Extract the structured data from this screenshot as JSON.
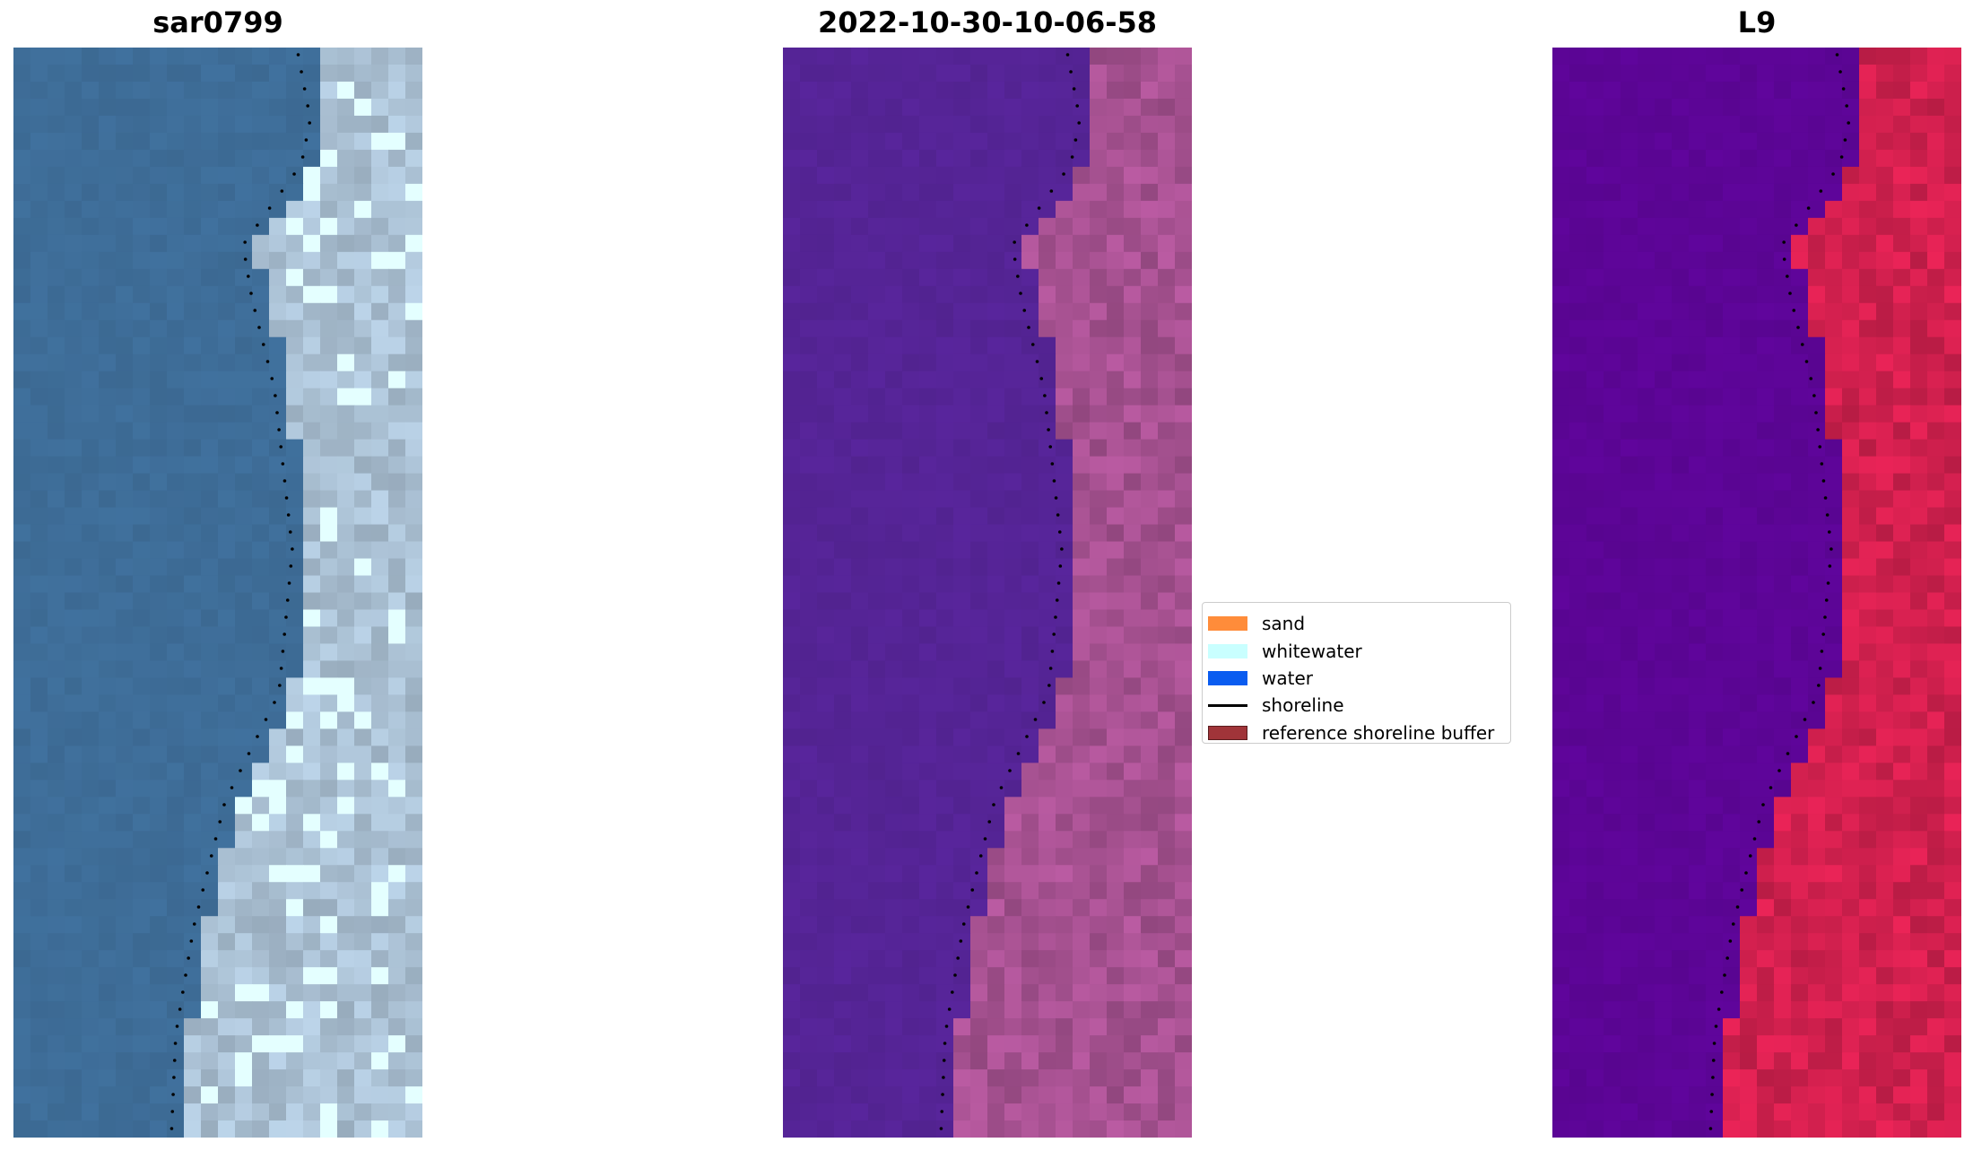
{
  "panels": [
    {
      "id": "rgb",
      "title": "sar0799"
    },
    {
      "id": "classified",
      "title": "2022-10-30-10-06-58"
    },
    {
      "id": "mndwi",
      "title": "L9"
    }
  ],
  "legend": {
    "items": [
      {
        "label": "sand",
        "color": "#ff8c3a",
        "kind": "patch"
      },
      {
        "label": "whitewater",
        "color": "#c9ffff",
        "kind": "patch"
      },
      {
        "label": "water",
        "color": "#0a5cf0",
        "kind": "patch"
      },
      {
        "label": "shoreline",
        "color": "#000000",
        "kind": "line"
      },
      {
        "label": "reference shoreline buffer",
        "color": "#a03439",
        "kind": "patch",
        "edge": "#5a1c1e"
      }
    ]
  },
  "colors": {
    "rgb_water": "#3e6d98",
    "rgb_land": "#a9bfd2",
    "class_water": "#552496",
    "class_land": "#a24f8d",
    "index_water": "#5c0596",
    "index_land": "#cc1f4c",
    "shoreline_dots": "#000000"
  }
}
